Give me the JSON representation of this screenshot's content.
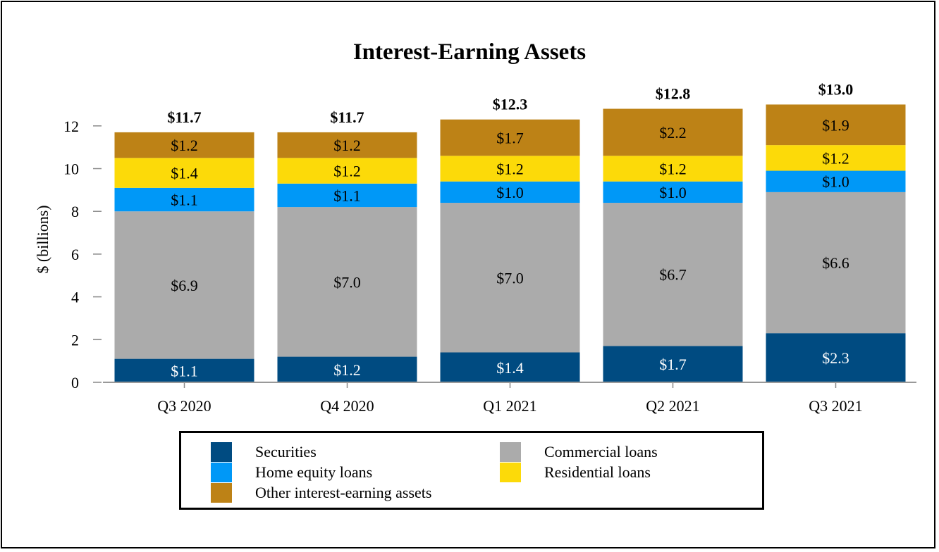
{
  "chart_data": {
    "type": "bar",
    "stacked": true,
    "title": "Interest-Earning Assets",
    "xlabel": "",
    "ylabel": "$ (billions)",
    "ylim": [
      0,
      13.5
    ],
    "yticks": [
      0,
      2,
      4,
      6,
      8,
      10,
      12
    ],
    "categories": [
      "Q3 2020",
      "Q4 2020",
      "Q1 2021",
      "Q2 2021",
      "Q3 2021"
    ],
    "series": [
      {
        "name": "Securities",
        "color": "#004B81",
        "values": [
          1.1,
          1.2,
          1.4,
          1.7,
          2.3
        ],
        "labels": [
          "$1.1",
          "$1.2",
          "$1.4",
          "$1.7",
          "$2.3"
        ],
        "label_color": "#ffffff"
      },
      {
        "name": "Commercial loans",
        "color": "#ABABAB",
        "values": [
          6.9,
          7.0,
          7.0,
          6.7,
          6.6
        ],
        "labels": [
          "$6.9",
          "$7.0",
          "$7.0",
          "$6.7",
          "$6.6"
        ],
        "label_color": "#000000"
      },
      {
        "name": "Home equity loans",
        "color": "#0098F7",
        "values": [
          1.1,
          1.1,
          1.0,
          1.0,
          1.0
        ],
        "labels": [
          "$1.1",
          "$1.1",
          "$1.0",
          "$1.0",
          "$1.0"
        ],
        "label_color": "#000000"
      },
      {
        "name": "Residential loans",
        "color": "#FCDA09",
        "values": [
          1.4,
          1.2,
          1.2,
          1.2,
          1.2
        ],
        "labels": [
          "$1.4",
          "$1.2",
          "$1.2",
          "$1.2",
          "$1.2"
        ],
        "label_color": "#000000"
      },
      {
        "name": "Other interest-earning assets",
        "color": "#BD8216",
        "values": [
          1.2,
          1.2,
          1.7,
          2.2,
          1.9
        ],
        "labels": [
          "$1.2",
          "$1.2",
          "$1.7",
          "$2.2",
          "$1.9"
        ],
        "label_color": "#000000"
      }
    ],
    "totals": [
      11.7,
      11.7,
      12.3,
      12.8,
      13.0
    ],
    "total_labels": [
      "$11.7",
      "$11.7",
      "$12.3",
      "$12.8",
      "$13.0"
    ],
    "legend": {
      "placement": "bottom",
      "entries": [
        "Securities",
        "Commercial loans",
        "Home equity loans",
        "Residential loans",
        "Other interest-earning assets"
      ]
    }
  }
}
